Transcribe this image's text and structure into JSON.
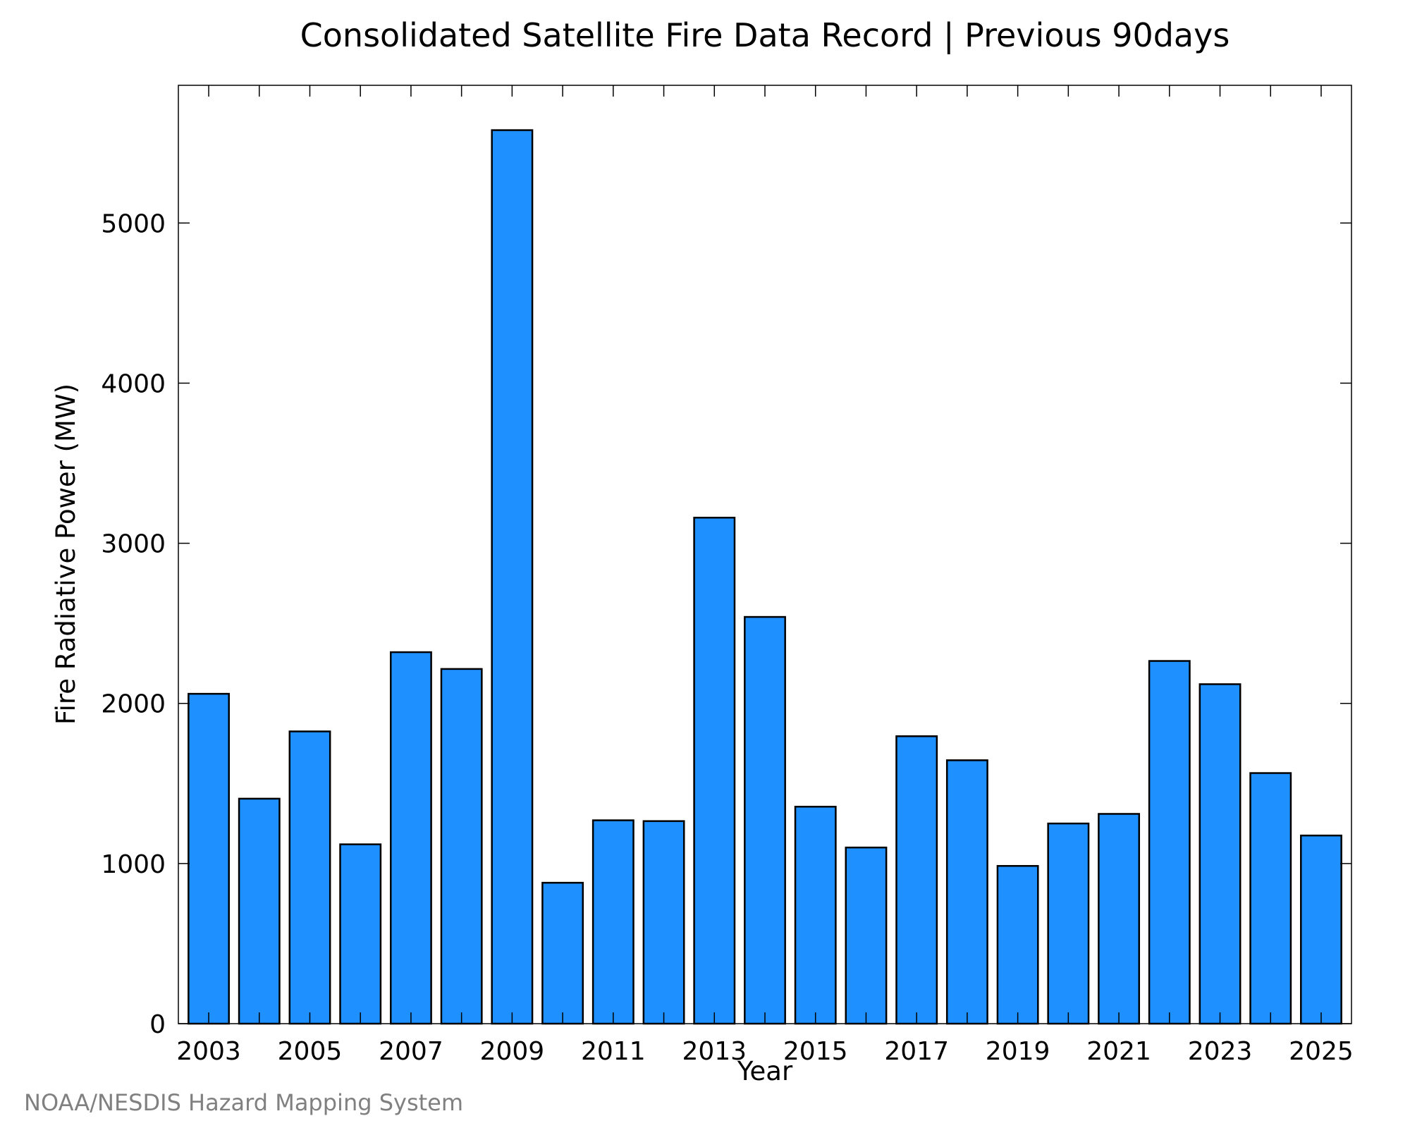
{
  "chart_data": {
    "type": "bar",
    "title": "Consolidated Satellite Fire Data Record | Previous 90days",
    "xlabel": "Year",
    "ylabel": "Fire Radiative Power (MW)",
    "credit": "NOAA/NESDIS Hazard Mapping System",
    "categories": [
      "2003",
      "2004",
      "2005",
      "2006",
      "2007",
      "2008",
      "2009",
      "2010",
      "2011",
      "2012",
      "2013",
      "2014",
      "2015",
      "2016",
      "2017",
      "2018",
      "2019",
      "2020",
      "2021",
      "2022",
      "2023",
      "2024",
      "2025"
    ],
    "values": [
      2060,
      1405,
      1825,
      1120,
      2320,
      2215,
      5580,
      880,
      1270,
      1265,
      3160,
      2540,
      1355,
      1100,
      1795,
      1645,
      985,
      1250,
      1310,
      2265,
      2120,
      1565,
      1175
    ],
    "xticks": [
      "2003",
      "2005",
      "2007",
      "2009",
      "2011",
      "2013",
      "2015",
      "2017",
      "2019",
      "2021",
      "2023",
      "2025"
    ],
    "yticks": [
      "0",
      "1000",
      "2000",
      "3000",
      "4000",
      "5000"
    ],
    "ylim": [
      0,
      5860
    ],
    "grid": false,
    "bar_color": "#1E90FF",
    "bar_edge_color": "#000000"
  }
}
